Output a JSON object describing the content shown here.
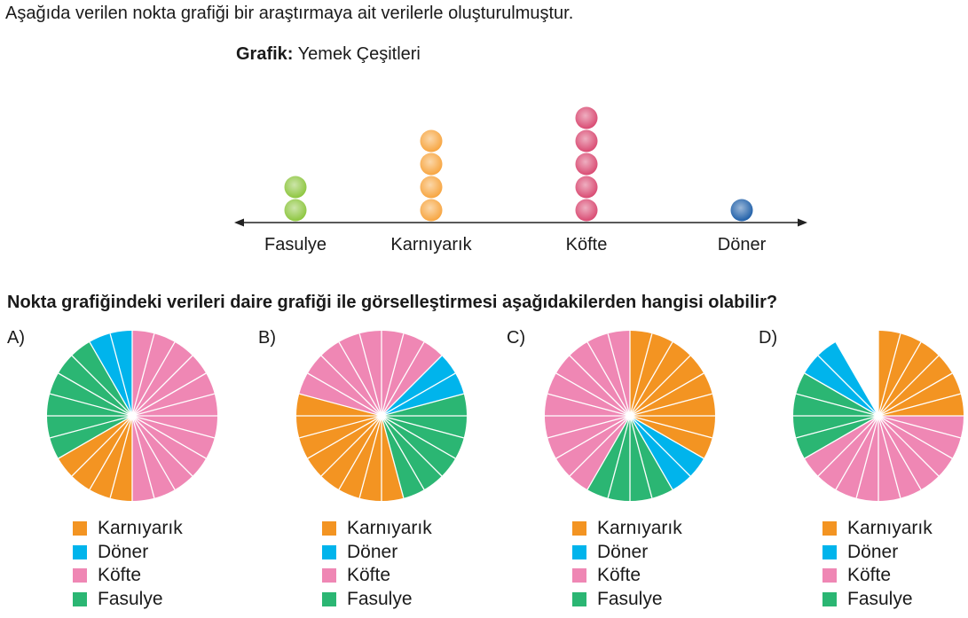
{
  "intro_text": "Aşağıda verilen nokta grafiği bir araştırmaya ait verilerle oluşturulmuştur.",
  "title_bold": "Grafik:",
  "title_rest": "Yemek Çeşitleri",
  "question": "Nokta grafiğindeki verileri daire grafiği ile görselleştirmesi aşağıdakilerden hangisi olabilir?",
  "colors": {
    "Karnıyarık": "#f39422",
    "Döner": "#00b4ec",
    "Köfte": "#ef87b4",
    "Fasulye": "#2bb673"
  },
  "legend": [
    "Karnıyarık",
    "Döner",
    "Köfte",
    "Fasulye"
  ],
  "chart_data": [
    {
      "type": "scatter",
      "title": "Grafik: Yemek Çeşitleri",
      "categories": [
        "Fasulye",
        "Karnıyarık",
        "Köfte",
        "Döner"
      ],
      "values": [
        2,
        4,
        5,
        1
      ],
      "dot_colors": [
        "#8dc63f",
        "#f7a540",
        "#d94a72",
        "#1f5fa8"
      ]
    },
    {
      "type": "pie",
      "option": "A)",
      "segments": [
        {
          "label": "Köfte",
          "value": 6
        },
        {
          "label": "Karnıyarık",
          "value": 2
        },
        {
          "label": "Fasulye",
          "value": 3
        },
        {
          "label": "Döner",
          "value": 1
        }
      ]
    },
    {
      "type": "pie",
      "option": "B)",
      "segments": [
        {
          "label": "Köfte",
          "value": 1.5
        },
        {
          "label": "Döner",
          "value": 1
        },
        {
          "label": "Fasulye",
          "value": 3
        },
        {
          "label": "Karnıyarık",
          "value": 4
        },
        {
          "label": "Köfte",
          "value": 2.5
        }
      ]
    },
    {
      "type": "pie",
      "option": "C)",
      "segments": [
        {
          "label": "Karnıyarık",
          "value": 4
        },
        {
          "label": "Döner",
          "value": 1
        },
        {
          "label": "Fasulye",
          "value": 2
        },
        {
          "label": "Köfte",
          "value": 5
        }
      ]
    },
    {
      "type": "pie",
      "option": "D)",
      "segments": [
        {
          "label": "Karnıyarık",
          "value": 3
        },
        {
          "label": "Köfte",
          "value": 5
        },
        {
          "label": "Fasulye",
          "value": 2
        },
        {
          "label": "Döner",
          "value": 1
        }
      ]
    }
  ]
}
